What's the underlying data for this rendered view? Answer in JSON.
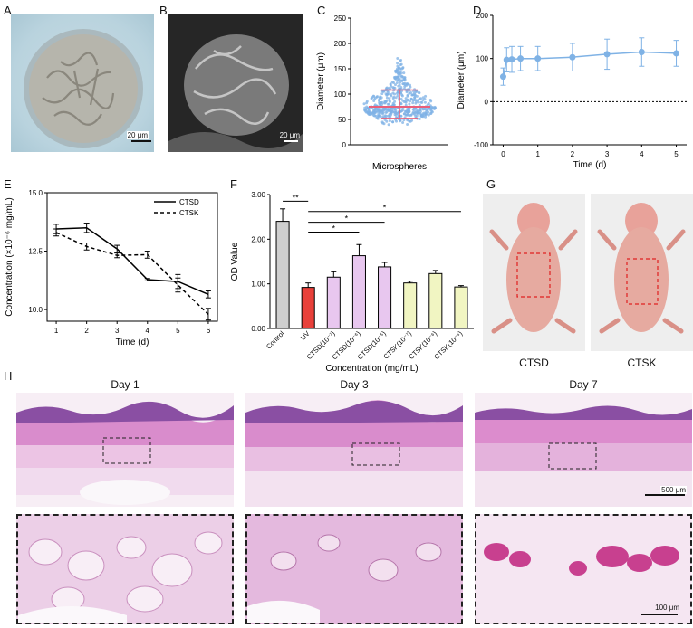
{
  "panel_letters": [
    "A",
    "B",
    "C",
    "D",
    "E",
    "F",
    "G",
    "H"
  ],
  "scale_bars": {
    "a": "20 μm",
    "b": "20 μm",
    "h_top": "500 μm",
    "h_bottom": "100 μm"
  },
  "g_labels": [
    "CTSD",
    "CTSK"
  ],
  "h_labels": [
    "Day 1",
    "Day 3",
    "Day 7"
  ],
  "colors": {
    "blue": "#7fb2e5",
    "red_line": "#e8607a",
    "he_pink": "#e7a6d6",
    "he_purple": "#8a4fa3"
  },
  "chart_data": [
    {
      "panel": "C",
      "type": "scatter",
      "title": "",
      "xlabel": "Microspheres",
      "ylabel": "Diameter (μm)",
      "ylim": [
        0,
        250
      ],
      "yticks": [
        "0",
        "50",
        "100",
        "150",
        "200",
        "250"
      ],
      "distribution": {
        "min": 35,
        "max": 195,
        "mean": 75,
        "sd_low": 52,
        "sd_high": 108
      },
      "marker_color": "#7fb2e5",
      "summary_color": "#e8607a"
    },
    {
      "panel": "D",
      "type": "line",
      "xlabel": "Time (d)",
      "ylabel": "Diameter (μm)",
      "xlim": [
        -0.3,
        5.3
      ],
      "ylim": [
        -100,
        200
      ],
      "xticks": [
        "0",
        "1",
        "2",
        "3",
        "4",
        "5"
      ],
      "yticks": [
        "-100",
        "0",
        "100",
        "200"
      ],
      "x": [
        0,
        0.1,
        0.25,
        0.5,
        1,
        2,
        3,
        4,
        5
      ],
      "y": [
        58,
        97,
        98,
        100,
        100,
        103,
        110,
        115,
        112
      ],
      "err": [
        20,
        28,
        30,
        28,
        28,
        32,
        35,
        33,
        30
      ],
      "reference_y": 0,
      "color": "#7fb2e5"
    },
    {
      "panel": "E",
      "type": "line",
      "xlabel": "Time (d)",
      "ylabel": "Concentration (×10⁻⁶ mg/mL)",
      "xlim": [
        0.7,
        6.3
      ],
      "ylim": [
        9.5,
        15
      ],
      "xticks": [
        "1",
        "2",
        "3",
        "4",
        "5",
        "6"
      ],
      "yticks": [
        "10.0",
        "12.5",
        "15.0"
      ],
      "x": [
        1,
        2,
        3,
        4,
        5,
        6
      ],
      "series": [
        {
          "name": "CTSD",
          "values": [
            13.45,
            13.5,
            12.6,
            11.28,
            11.2,
            10.65
          ],
          "err": [
            0.2,
            0.2,
            0.15,
            0.05,
            0.3,
            0.15
          ],
          "dash": false
        },
        {
          "name": "CTSK",
          "values": [
            13.3,
            12.7,
            12.32,
            12.35,
            11.05,
            9.8
          ],
          "err": [
            0.15,
            0.15,
            0.1,
            0.15,
            0.3,
            0.25
          ],
          "dash": true
        }
      ],
      "legend": "top-right"
    },
    {
      "panel": "F",
      "type": "bar",
      "xlabel": "Concentration (mg/mL)",
      "ylabel": "OD Value",
      "ylim": [
        0,
        3
      ],
      "yticks": [
        "0.00",
        "1.00",
        "2.00",
        "3.00"
      ],
      "categories": [
        "Control",
        "UV",
        "CTSD(10⁻⁷)",
        "CTSD(10⁻⁶)",
        "CTSD(10⁻⁵)",
        "CTSK(10⁻⁷)",
        "CTSK(10⁻⁶)",
        "CTSK(10⁻⁵)"
      ],
      "values": [
        2.4,
        0.92,
        1.15,
        1.63,
        1.38,
        1.02,
        1.23,
        0.93
      ],
      "err": [
        0.28,
        0.1,
        0.12,
        0.25,
        0.1,
        0.04,
        0.07,
        0.03
      ],
      "colors": [
        "#cfcfcf",
        "#e8403a",
        "#e8c7ef",
        "#e8c7ef",
        "#e8c7ef",
        "#f1f5c2",
        "#f1f5c2",
        "#f1f5c2"
      ],
      "significance": [
        {
          "from": 0,
          "to": 1,
          "label": "**"
        },
        {
          "from": 1,
          "to": 7,
          "label": "*"
        },
        {
          "from": 1,
          "to": 4,
          "label": "*"
        },
        {
          "from": 1,
          "to": 3,
          "label": "*"
        }
      ]
    }
  ]
}
